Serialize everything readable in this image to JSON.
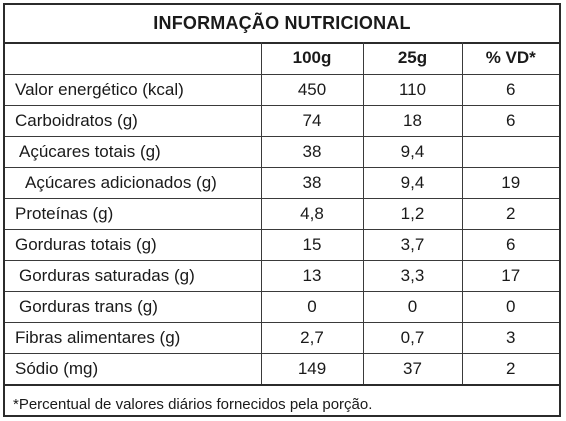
{
  "title": "INFORMAÇÃO NUTRICIONAL",
  "columns": [
    "",
    "100g",
    "25g",
    "% VD*"
  ],
  "rows": [
    {
      "label": "Valor energético (kcal)",
      "per100": "450",
      "per25": "110",
      "vd": "6"
    },
    {
      "label": "Carboidratos (g)",
      "per100": "74",
      "per25": "18",
      "vd": "6"
    },
    {
      "label": "Açúcares totais (g)",
      "per100": "38",
      "per25": "9,4",
      "vd": ""
    },
    {
      "label": "Açúcares adicionados (g)",
      "per100": "38",
      "per25": "9,4",
      "vd": "19"
    },
    {
      "label": "Proteínas (g)",
      "per100": "4,8",
      "per25": "1,2",
      "vd": "2"
    },
    {
      "label": "Gorduras totais (g)",
      "per100": "15",
      "per25": "3,7",
      "vd": "6"
    },
    {
      "label": "Gorduras saturadas (g)",
      "per100": "13",
      "per25": "3,3",
      "vd": "17"
    },
    {
      "label": "Gorduras trans (g)",
      "per100": "0",
      "per25": "0",
      "vd": "0"
    },
    {
      "label": "Fibras alimentares (g)",
      "per100": "2,7",
      "per25": "0,7",
      "vd": "3"
    },
    {
      "label": "Sódio (mg)",
      "per100": "149",
      "per25": "37",
      "vd": "2"
    }
  ],
  "footnote": "*Percentual de valores diários fornecidos pela porção."
}
